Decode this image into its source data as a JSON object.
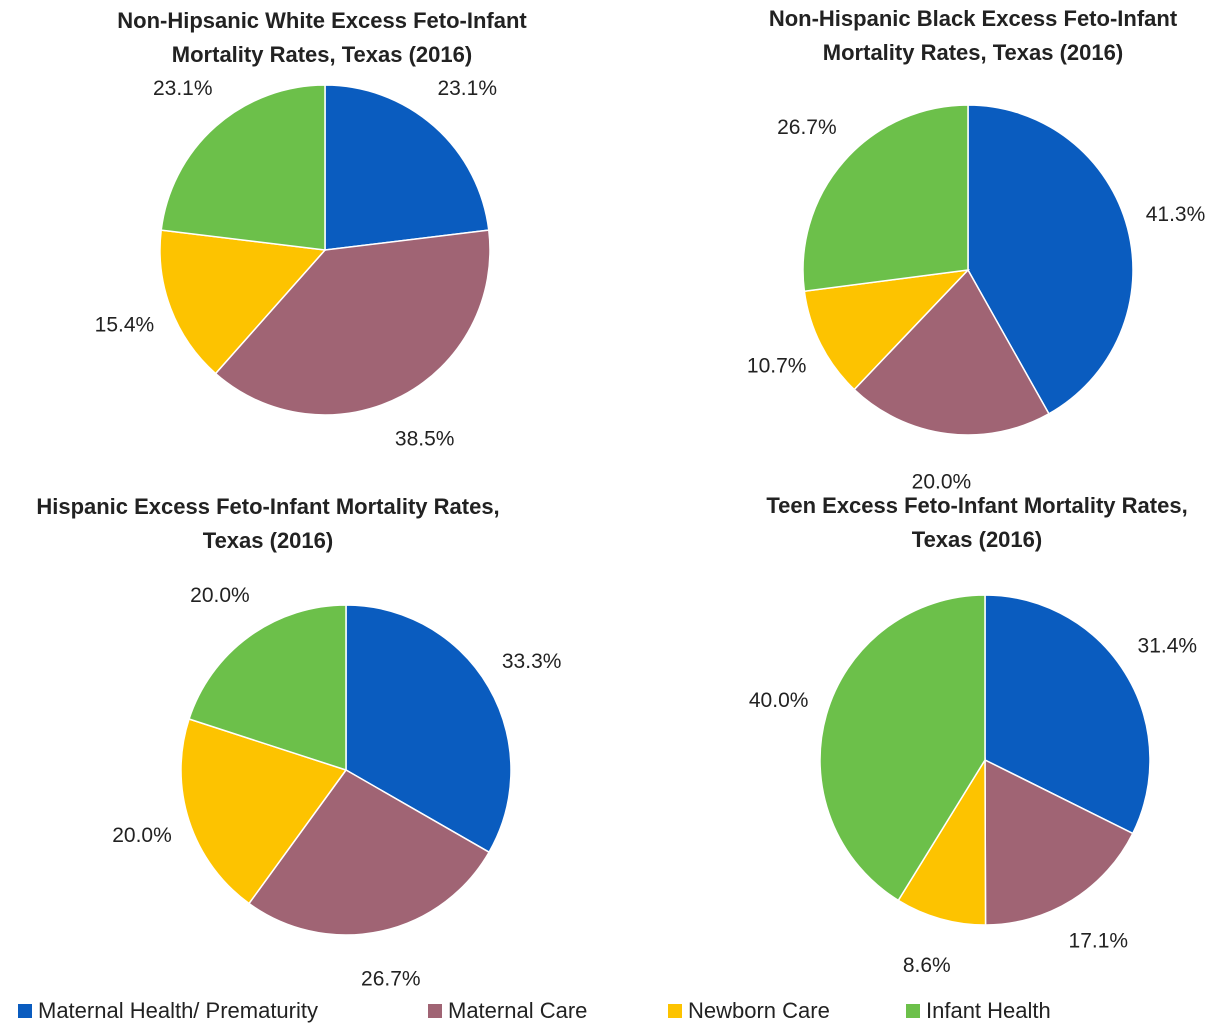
{
  "chart_data": [
    {
      "type": "pie",
      "title": [
        "Non-Hipsanic White Excess Feto-Infant",
        "Mortality Rates, Texas (2016)"
      ],
      "categories": [
        "Maternal Health/ Prematurity",
        "Maternal Care",
        "Newborn Care",
        "Infant Health"
      ],
      "values": [
        23.1,
        38.5,
        15.4,
        23.1
      ],
      "value_labels": [
        "23.1%",
        "38.5%",
        "15.4%",
        "23.1%"
      ],
      "colors": [
        "#0a5cbf",
        "#a06474",
        "#fdc300",
        "#6cc04a"
      ]
    },
    {
      "type": "pie",
      "title": [
        "Non-Hispanic Black Excess Feto-Infant",
        "Mortality Rates, Texas (2016)"
      ],
      "categories": [
        "Maternal Health/ Prematurity",
        "Maternal Care",
        "Newborn Care",
        "Infant Health"
      ],
      "values": [
        41.3,
        20.0,
        10.7,
        26.7
      ],
      "value_labels": [
        "41.3%",
        "20.0%",
        "10.7%",
        "26.7%"
      ],
      "colors": [
        "#0a5cbf",
        "#a06474",
        "#fdc300",
        "#6cc04a"
      ]
    },
    {
      "type": "pie",
      "title": [
        "Hispanic Excess Feto-Infant Mortality Rates,",
        "Texas (2016)"
      ],
      "categories": [
        "Maternal Health/ Prematurity",
        "Maternal Care",
        "Newborn Care",
        "Infant Health"
      ],
      "values": [
        33.3,
        26.7,
        20.0,
        20.0
      ],
      "value_labels": [
        "33.3%",
        "26.7%",
        "20.0%",
        "20.0%"
      ],
      "colors": [
        "#0a5cbf",
        "#a06474",
        "#fdc300",
        "#6cc04a"
      ]
    },
    {
      "type": "pie",
      "title": [
        "Teen Excess Feto-Infant Mortality Rates,",
        "Texas (2016)"
      ],
      "categories": [
        "Maternal Health/ Prematurity",
        "Maternal Care",
        "Newborn Care",
        "Infant Health"
      ],
      "values": [
        31.4,
        17.1,
        8.6,
        40.0
      ],
      "value_labels": [
        "31.4%",
        "17.1%",
        "8.6%",
        "40.0%"
      ],
      "colors": [
        "#0a5cbf",
        "#a06474",
        "#fdc300",
        "#6cc04a"
      ]
    }
  ]
}
